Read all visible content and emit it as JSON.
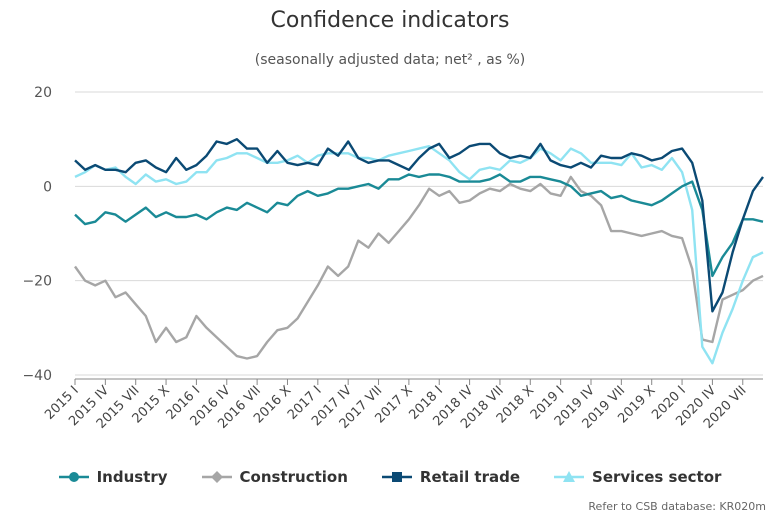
{
  "title": "Confidence indicators",
  "subtitle": "(seasonally adjusted data; net² , as %)",
  "source_note": "Refer to CSB database: KR020m",
  "colors": {
    "industry": "#1a8a96",
    "construction": "#a6a6a6",
    "retail": "#0b4a74",
    "services": "#8fe3f2",
    "grid": "#d9d9d9",
    "axis": "#888888"
  },
  "legend": [
    {
      "name": "Industry",
      "color": "#1a8a96",
      "marker": "circle"
    },
    {
      "name": "Construction",
      "color": "#a6a6a6",
      "marker": "diamond"
    },
    {
      "name": "Retail trade",
      "color": "#0b4a74",
      "marker": "square"
    },
    {
      "name": "Services sector",
      "color": "#8fe3f2",
      "marker": "triangle"
    }
  ],
  "chart_data": {
    "type": "line",
    "x": [
      "2015 I",
      "2015 II",
      "2015 III",
      "2015 IV",
      "2015 V",
      "2015 VI",
      "2015 VII",
      "2015 VIII",
      "2015 IX",
      "2015 X",
      "2015 XI",
      "2015 XII",
      "2016 I",
      "2016 II",
      "2016 III",
      "2016 IV",
      "2016 V",
      "2016 VI",
      "2016 VII",
      "2016 VIII",
      "2016 IX",
      "2016 X",
      "2016 XI",
      "2016 XII",
      "2017 I",
      "2017 II",
      "2017 III",
      "2017 IV",
      "2017 V",
      "2017 VI",
      "2017 VII",
      "2017 VIII",
      "2017 IX",
      "2017 X",
      "2017 XI",
      "2017 XII",
      "2018 I",
      "2018 II",
      "2018 III",
      "2018 IV",
      "2018 V",
      "2018 VI",
      "2018 VII",
      "2018 VIII",
      "2018 IX",
      "2018 X",
      "2018 XI",
      "2018 XII",
      "2019 I",
      "2019 II",
      "2019 III",
      "2019 IV",
      "2019 V",
      "2019 VI",
      "2019 VII",
      "2019 VIII",
      "2019 IX",
      "2019 X",
      "2019 XI",
      "2019 XII",
      "2020 I",
      "2020 II",
      "2020 III",
      "2020 IV",
      "2020 V",
      "2020 VI",
      "2020 VII",
      "2020 VIII",
      "2020 IX"
    ],
    "tick_labels": [
      "2015 I",
      "2015 IV",
      "2015 VII",
      "2015 X",
      "2016 I",
      "2016 IV",
      "2016 VII",
      "2016 X",
      "2017 I",
      "2017 IV",
      "2017 VII",
      "2017 X",
      "2018 I",
      "2018 IV",
      "2018 VII",
      "2018 X",
      "2019 I",
      "2019 IV",
      "2019 VII",
      "2019 X",
      "2020 I",
      "2020 IV",
      "2020 VII"
    ],
    "ylim": [
      -40,
      20
    ],
    "yticks": [
      20,
      0,
      -20,
      -40
    ],
    "ytick_labels": [
      "20",
      "0",
      "−20",
      "−40"
    ],
    "grid": true,
    "legend_position": "bottom",
    "series": [
      {
        "name": "Industry",
        "values": [
          -6,
          -8,
          -7.5,
          -5.5,
          -6,
          -7.5,
          -6,
          -4.5,
          -6.5,
          -5.5,
          -6.5,
          -6.5,
          -6,
          -7,
          -5.5,
          -4.5,
          -5,
          -3.5,
          -4.5,
          -5.5,
          -3.5,
          -4,
          -2,
          -1,
          -2,
          -1.5,
          -0.5,
          -0.5,
          0,
          0.5,
          -0.5,
          1.5,
          1.5,
          2.5,
          2,
          2.5,
          2.5,
          2,
          1,
          1,
          1,
          1.5,
          2.5,
          1,
          1,
          2,
          2,
          1.5,
          1,
          0,
          -2,
          -1.5,
          -1,
          -2.5,
          -2,
          -3,
          -3.5,
          -4,
          -3,
          -1.5,
          0,
          1,
          -5,
          -19,
          -15,
          -12,
          -7,
          -7,
          -7.5
        ]
      },
      {
        "name": "Construction",
        "values": [
          -17,
          -20,
          -21,
          -20,
          -23.5,
          -22.5,
          -25,
          -27.5,
          -33,
          -30,
          -33,
          -32,
          -27.5,
          -30,
          -32,
          -34,
          -36,
          -36.5,
          -36,
          -33,
          -30.5,
          -30,
          -28,
          -24.5,
          -21,
          -17,
          -19,
          -17,
          -11.5,
          -13,
          -10,
          -12,
          -9.5,
          -7,
          -4,
          -0.5,
          -2,
          -1,
          -3.5,
          -3,
          -1.5,
          -0.5,
          -1,
          0.5,
          -0.5,
          -1,
          0.5,
          -1.5,
          -2,
          2,
          -1,
          -2,
          -4,
          -9.5,
          -9.5,
          -10,
          -10.5,
          -10,
          -9.5,
          -10.5,
          -11,
          -17.5,
          -32.5,
          -33,
          -24,
          -23,
          -22,
          -20,
          -19
        ]
      },
      {
        "name": "Retail trade",
        "values": [
          5.5,
          3.5,
          4.5,
          3.5,
          3.5,
          3,
          5,
          5.5,
          4,
          3,
          6,
          3.5,
          4.5,
          6.5,
          9.5,
          9,
          10,
          8,
          8,
          5,
          7.5,
          5,
          4.5,
          5,
          4.5,
          8,
          6.5,
          9.5,
          6,
          5,
          5.5,
          5.5,
          4.5,
          3.5,
          6,
          8,
          9,
          6,
          7,
          8.5,
          9,
          9,
          7,
          6,
          6.5,
          6,
          9,
          5.5,
          4.5,
          4,
          5,
          4,
          6.5,
          6,
          6,
          7,
          6.5,
          5.5,
          6,
          7.5,
          8,
          5,
          -3,
          -26.5,
          -22.5,
          -14,
          -7,
          -1,
          2
        ]
      },
      {
        "name": "Services sector",
        "values": [
          2,
          3,
          4.5,
          3.5,
          4,
          2,
          0.5,
          2.5,
          1,
          1.5,
          0.5,
          1,
          3,
          3,
          5.5,
          6,
          7,
          7,
          6,
          5,
          5,
          5.5,
          6.5,
          5,
          6.5,
          7,
          7,
          7,
          6,
          6,
          5.5,
          6.5,
          7,
          7.5,
          8,
          8.5,
          7,
          5.5,
          3,
          1.5,
          3.5,
          4,
          3.5,
          5.5,
          5,
          6,
          8,
          7,
          5.5,
          8,
          7,
          5,
          5,
          5,
          4.5,
          7,
          4,
          4.5,
          3.5,
          6,
          3,
          -5,
          -34,
          -37.5,
          -31,
          -26,
          -20,
          -15,
          -14
        ]
      }
    ]
  }
}
